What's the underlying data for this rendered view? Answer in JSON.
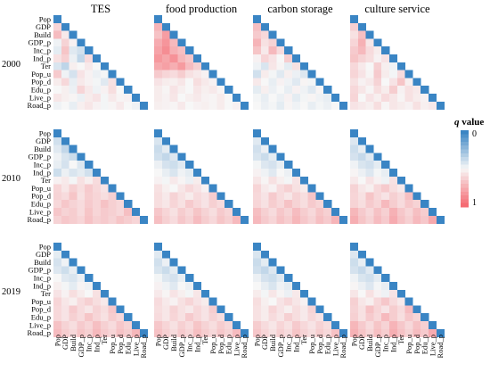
{
  "chart_data": {
    "type": "heatmap",
    "title": "",
    "columns": [
      "TES",
      "food production",
      "carbon storage",
      "culture service"
    ],
    "rows": [
      "2000",
      "2010",
      "2019"
    ],
    "variables": [
      "Pop",
      "GDP",
      "Build",
      "GDP_p",
      "Inc_p",
      "Ind_p",
      "Ter",
      "Pop_u",
      "Pop_d",
      "Edu_p",
      "Live_p",
      "Road_p"
    ],
    "colorbar": {
      "label": "q value",
      "min": 0,
      "max": 1,
      "ticks": [
        "0",
        "1"
      ],
      "colors": [
        "#3a85c4",
        "#f7f7f7",
        "#f56b73"
      ]
    },
    "panels": [
      {
        "row": "2000",
        "column": "TES",
        "lower_q": [
          0.62,
          0.71,
          0.55,
          0.48,
          0.63,
          0.52,
          0.45,
          0.68,
          0.44,
          0.4,
          0.58,
          0.64,
          0.47,
          0.36,
          0.6,
          0.42,
          0.35,
          0.53,
          0.5,
          0.55,
          0.5,
          0.66,
          0.48,
          0.41,
          0.57,
          0.52,
          0.47,
          0.49,
          0.54,
          0.61,
          0.46,
          0.55,
          0.52,
          0.49,
          0.44,
          0.58,
          0.5,
          0.53,
          0.47,
          0.62,
          0.55,
          0.48,
          0.52,
          0.59,
          0.5,
          0.56,
          0.53,
          0.51,
          0.47,
          0.54,
          0.57,
          0.49,
          0.55,
          0.51,
          0.52,
          0.48,
          0.5,
          0.46,
          0.53,
          0.56,
          0.52,
          0.49,
          0.51,
          0.55,
          0.5,
          0.48
        ]
      },
      {
        "row": "2000",
        "column": "food production",
        "lower_q": [
          0.74,
          0.69,
          0.82,
          0.77,
          0.85,
          0.72,
          0.8,
          0.88,
          0.75,
          0.7,
          0.84,
          0.79,
          0.86,
          0.73,
          0.67,
          0.78,
          0.81,
          0.76,
          0.83,
          0.71,
          0.64,
          0.66,
          0.62,
          0.6,
          0.65,
          0.58,
          0.55,
          0.52,
          0.57,
          0.54,
          0.53,
          0.56,
          0.5,
          0.59,
          0.55,
          0.52,
          0.54,
          0.51,
          0.57,
          0.53,
          0.5,
          0.56,
          0.53,
          0.55,
          0.51,
          0.54,
          0.52,
          0.56,
          0.5,
          0.53,
          0.55,
          0.52,
          0.51,
          0.54,
          0.5,
          0.53,
          0.52,
          0.51,
          0.55,
          0.5,
          0.52,
          0.53,
          0.51,
          0.54,
          0.5,
          0.52
        ]
      },
      {
        "row": "2000",
        "column": "carbon storage",
        "lower_q": [
          0.7,
          0.66,
          0.61,
          0.74,
          0.58,
          0.63,
          0.68,
          0.55,
          0.72,
          0.6,
          0.52,
          0.62,
          0.57,
          0.5,
          0.65,
          0.48,
          0.42,
          0.56,
          0.51,
          0.45,
          0.58,
          0.4,
          0.54,
          0.49,
          0.44,
          0.53,
          0.47,
          0.43,
          0.55,
          0.5,
          0.46,
          0.52,
          0.48,
          0.44,
          0.51,
          0.49,
          0.45,
          0.53,
          0.47,
          0.5,
          0.46,
          0.52,
          0.48,
          0.44,
          0.51,
          0.49,
          0.46,
          0.5,
          0.47,
          0.52,
          0.45,
          0.49,
          0.51,
          0.48,
          0.46,
          0.5,
          0.47,
          0.49,
          0.45,
          0.51,
          0.48,
          0.5,
          0.46,
          0.49,
          0.47,
          0.5
        ]
      },
      {
        "row": "2000",
        "column": "culture service",
        "lower_q": [
          0.64,
          0.58,
          0.7,
          0.62,
          0.75,
          0.56,
          0.66,
          0.72,
          0.6,
          0.54,
          0.68,
          0.63,
          0.59,
          0.52,
          0.57,
          0.61,
          0.55,
          0.5,
          0.64,
          0.53,
          0.48,
          0.62,
          0.57,
          0.51,
          0.66,
          0.54,
          0.49,
          0.6,
          0.58,
          0.52,
          0.55,
          0.63,
          0.5,
          0.57,
          0.68,
          0.53,
          0.61,
          0.56,
          0.51,
          0.59,
          0.54,
          0.65,
          0.52,
          0.58,
          0.55,
          0.62,
          0.5,
          0.57,
          0.53,
          0.6,
          0.56,
          0.51,
          0.58,
          0.54,
          0.52,
          0.57,
          0.55,
          0.53,
          0.59,
          0.51,
          0.56,
          0.54,
          0.52,
          0.58,
          0.53,
          0.55
        ]
      },
      {
        "row": "2010",
        "column": "TES",
        "lower_q": [
          0.4,
          0.44,
          0.36,
          0.48,
          0.42,
          0.38,
          0.46,
          0.41,
          0.5,
          0.43,
          0.39,
          0.47,
          0.42,
          0.45,
          0.4,
          0.52,
          0.55,
          0.49,
          0.58,
          0.53,
          0.6,
          0.62,
          0.56,
          0.64,
          0.59,
          0.66,
          0.61,
          0.57,
          0.63,
          0.6,
          0.68,
          0.58,
          0.65,
          0.62,
          0.59,
          0.64,
          0.61,
          0.67,
          0.63,
          0.6,
          0.66,
          0.62,
          0.69,
          0.64,
          0.61,
          0.67,
          0.63,
          0.65,
          0.6,
          0.68,
          0.62,
          0.66,
          0.64,
          0.61,
          0.7,
          0.63,
          0.67,
          0.65,
          0.62,
          0.69,
          0.64,
          0.66,
          0.63,
          0.68,
          0.65,
          0.62
        ]
      },
      {
        "row": "2010",
        "column": "food production",
        "lower_q": [
          0.42,
          0.38,
          0.45,
          0.4,
          0.36,
          0.43,
          0.47,
          0.41,
          0.39,
          0.44,
          0.5,
          0.46,
          0.42,
          0.48,
          0.45,
          0.52,
          0.49,
          0.55,
          0.51,
          0.47,
          0.54,
          0.58,
          0.53,
          0.5,
          0.56,
          0.61,
          0.57,
          0.52,
          0.59,
          0.55,
          0.63,
          0.58,
          0.54,
          0.6,
          0.57,
          0.65,
          0.59,
          0.56,
          0.62,
          0.58,
          0.66,
          0.61,
          0.57,
          0.64,
          0.6,
          0.67,
          0.62,
          0.58,
          0.65,
          0.61,
          0.68,
          0.63,
          0.59,
          0.66,
          0.62,
          0.7,
          0.64,
          0.6,
          0.67,
          0.63,
          0.71,
          0.65,
          0.61,
          0.68,
          0.64,
          0.72
        ]
      },
      {
        "row": "2010",
        "column": "carbon storage",
        "lower_q": [
          0.44,
          0.4,
          0.47,
          0.42,
          0.38,
          0.45,
          0.49,
          0.43,
          0.41,
          0.46,
          0.52,
          0.48,
          0.44,
          0.5,
          0.47,
          0.56,
          0.51,
          0.58,
          0.53,
          0.49,
          0.57,
          0.62,
          0.55,
          0.52,
          0.6,
          0.64,
          0.58,
          0.54,
          0.61,
          0.57,
          0.66,
          0.6,
          0.56,
          0.63,
          0.59,
          0.68,
          0.62,
          0.58,
          0.65,
          0.61,
          0.69,
          0.63,
          0.59,
          0.66,
          0.62,
          0.7,
          0.64,
          0.6,
          0.67,
          0.63,
          0.71,
          0.65,
          0.61,
          0.68,
          0.64,
          0.72,
          0.66,
          0.62,
          0.69,
          0.65,
          0.73,
          0.67,
          0.63,
          0.7,
          0.66,
          0.74
        ]
      },
      {
        "row": "2010",
        "column": "culture service",
        "lower_q": [
          0.43,
          0.39,
          0.46,
          0.41,
          0.37,
          0.44,
          0.48,
          0.42,
          0.4,
          0.45,
          0.51,
          0.47,
          0.43,
          0.49,
          0.46,
          0.55,
          0.5,
          0.57,
          0.52,
          0.48,
          0.58,
          0.63,
          0.56,
          0.53,
          0.61,
          0.66,
          0.59,
          0.55,
          0.62,
          0.58,
          0.68,
          0.61,
          0.57,
          0.64,
          0.6,
          0.7,
          0.63,
          0.59,
          0.66,
          0.62,
          0.72,
          0.65,
          0.6,
          0.67,
          0.63,
          0.73,
          0.66,
          0.61,
          0.69,
          0.64,
          0.75,
          0.67,
          0.62,
          0.7,
          0.65,
          0.76,
          0.68,
          0.63,
          0.71,
          0.66,
          0.77,
          0.69,
          0.64,
          0.72,
          0.67,
          0.78
        ]
      },
      {
        "row": "2019",
        "column": "TES",
        "lower_q": [
          0.45,
          0.41,
          0.48,
          0.43,
          0.39,
          0.46,
          0.5,
          0.44,
          0.42,
          0.47,
          0.53,
          0.49,
          0.45,
          0.51,
          0.48,
          0.57,
          0.52,
          0.59,
          0.54,
          0.5,
          0.58,
          0.62,
          0.56,
          0.53,
          0.6,
          0.64,
          0.59,
          0.55,
          0.61,
          0.57,
          0.66,
          0.6,
          0.56,
          0.63,
          0.59,
          0.67,
          0.61,
          0.57,
          0.64,
          0.6,
          0.68,
          0.62,
          0.58,
          0.65,
          0.61,
          0.69,
          0.63,
          0.59,
          0.66,
          0.62,
          0.7,
          0.64,
          0.6,
          0.67,
          0.63,
          0.71,
          0.65,
          0.61,
          0.68,
          0.64,
          0.72,
          0.66,
          0.62,
          0.69,
          0.65,
          0.73
        ]
      },
      {
        "row": "2019",
        "column": "food production",
        "lower_q": [
          0.44,
          0.4,
          0.47,
          0.42,
          0.38,
          0.45,
          0.49,
          0.43,
          0.41,
          0.46,
          0.52,
          0.48,
          0.44,
          0.5,
          0.47,
          0.55,
          0.51,
          0.57,
          0.53,
          0.49,
          0.56,
          0.6,
          0.55,
          0.52,
          0.58,
          0.62,
          0.57,
          0.54,
          0.59,
          0.56,
          0.63,
          0.58,
          0.55,
          0.61,
          0.57,
          0.65,
          0.6,
          0.56,
          0.62,
          0.58,
          0.66,
          0.61,
          0.57,
          0.63,
          0.59,
          0.67,
          0.62,
          0.58,
          0.64,
          0.6,
          0.68,
          0.63,
          0.59,
          0.65,
          0.61,
          0.69,
          0.64,
          0.6,
          0.66,
          0.62,
          0.7,
          0.65,
          0.61,
          0.67,
          0.63,
          0.71
        ]
      },
      {
        "row": "2019",
        "column": "carbon storage",
        "lower_q": [
          0.42,
          0.38,
          0.45,
          0.4,
          0.36,
          0.43,
          0.47,
          0.41,
          0.39,
          0.44,
          0.5,
          0.46,
          0.42,
          0.48,
          0.45,
          0.54,
          0.49,
          0.56,
          0.51,
          0.47,
          0.55,
          0.59,
          0.53,
          0.5,
          0.57,
          0.61,
          0.56,
          0.52,
          0.58,
          0.54,
          0.62,
          0.57,
          0.53,
          0.59,
          0.55,
          0.63,
          0.58,
          0.54,
          0.6,
          0.56,
          0.64,
          0.59,
          0.55,
          0.61,
          0.57,
          0.65,
          0.6,
          0.56,
          0.62,
          0.58,
          0.66,
          0.61,
          0.57,
          0.63,
          0.59,
          0.67,
          0.62,
          0.58,
          0.64,
          0.6,
          0.68,
          0.63,
          0.59,
          0.65,
          0.61,
          0.69
        ]
      },
      {
        "row": "2019",
        "column": "culture service",
        "lower_q": [
          0.43,
          0.39,
          0.46,
          0.41,
          0.37,
          0.44,
          0.48,
          0.42,
          0.4,
          0.45,
          0.51,
          0.47,
          0.43,
          0.49,
          0.46,
          0.56,
          0.5,
          0.58,
          0.52,
          0.48,
          0.57,
          0.64,
          0.56,
          0.53,
          0.61,
          0.67,
          0.6,
          0.55,
          0.63,
          0.58,
          0.69,
          0.62,
          0.57,
          0.65,
          0.6,
          0.71,
          0.64,
          0.58,
          0.66,
          0.61,
          0.72,
          0.65,
          0.59,
          0.67,
          0.62,
          0.73,
          0.66,
          0.6,
          0.68,
          0.63,
          0.74,
          0.67,
          0.61,
          0.69,
          0.64,
          0.75,
          0.68,
          0.62,
          0.7,
          0.65,
          0.76,
          0.69,
          0.63,
          0.71,
          0.66,
          0.77
        ]
      }
    ]
  }
}
